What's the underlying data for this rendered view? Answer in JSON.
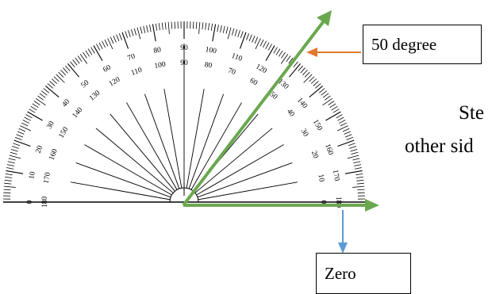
{
  "callouts": {
    "angle_label": "50 degree",
    "zero_label": "Zero"
  },
  "slide_text": {
    "line1": "Ste",
    "line2": "other sid"
  },
  "protractor": {
    "outer_scale": [
      0,
      10,
      20,
      30,
      40,
      50,
      60,
      70,
      80,
      90,
      100,
      110,
      120,
      130,
      140,
      150,
      160,
      170,
      180
    ],
    "inner_scale": [
      180,
      170,
      160,
      150,
      140,
      130,
      120,
      110,
      100,
      90,
      80,
      70,
      60,
      50,
      40,
      30,
      20,
      10,
      0
    ]
  },
  "colors": {
    "ray": "#6aa84f",
    "angle_arrow": "#e07a2e",
    "zero_arrow": "#5b9bd5",
    "ink": "#000000"
  }
}
